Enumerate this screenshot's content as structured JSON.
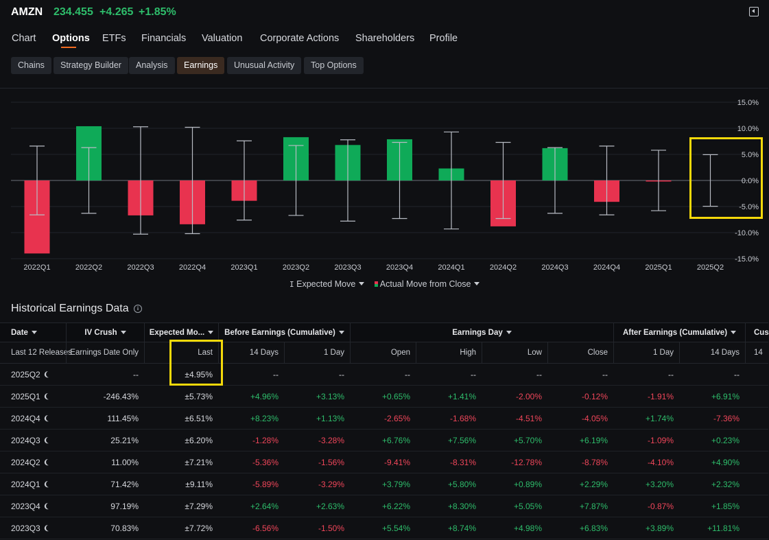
{
  "header": {
    "ticker": "AMZN",
    "price": "234.455",
    "change": "+4.265",
    "change_pct": "+1.85%"
  },
  "main_tabs": [
    {
      "label": "Chart"
    },
    {
      "label": "Options",
      "active": true
    },
    {
      "label": "ETFs"
    },
    {
      "label": "Financials"
    },
    {
      "label": "Valuation"
    },
    {
      "label": "Corporate Actions"
    },
    {
      "label": "Shareholders"
    },
    {
      "label": "Profile"
    }
  ],
  "sub_tabs": [
    {
      "label": "Chains"
    },
    {
      "label": "Strategy Builder"
    },
    {
      "label": "Analysis"
    },
    {
      "label": "Earnings",
      "active": true
    },
    {
      "label": "Unusual Activity"
    },
    {
      "label": "Top Options"
    }
  ],
  "colors": {
    "positive": "#2ebd6b",
    "negative": "#f0465a",
    "bar_green": "#0faa58",
    "bar_red": "#e8334f",
    "accent": "#f26b21",
    "highlight": "#f5d90a"
  },
  "legend": {
    "expected_move": "Expected Move",
    "actual_move": "Actual Move from Close"
  },
  "chart_data": {
    "type": "bar",
    "categories": [
      "2022Q1",
      "2022Q2",
      "2022Q3",
      "2022Q4",
      "2023Q1",
      "2023Q2",
      "2023Q3",
      "2023Q4",
      "2024Q1",
      "2024Q2",
      "2024Q3",
      "2024Q4",
      "2025Q1",
      "2025Q2"
    ],
    "series": [
      {
        "name": "Actual Move from Close",
        "values": [
          -14.0,
          10.4,
          -6.7,
          -8.4,
          -3.9,
          8.3,
          6.8,
          7.9,
          2.3,
          -8.8,
          6.2,
          -4.1,
          -0.12,
          null
        ]
      },
      {
        "name": "Expected Move",
        "values": [
          6.6,
          6.3,
          10.3,
          10.2,
          7.6,
          6.7,
          7.8,
          7.3,
          9.3,
          7.3,
          6.3,
          6.6,
          5.8,
          4.95
        ]
      }
    ],
    "y_ticks": [
      "15.0%",
      "10.0%",
      "5.0%",
      "0.0%",
      "-5.0%",
      "-10.0%",
      "-15.0%"
    ],
    "ylim": [
      -15,
      15
    ],
    "grid": true
  },
  "table": {
    "title": "Historical Earnings Data",
    "group_headers": {
      "date": "Date",
      "iv_crush": "IV Crush",
      "expected_move": "Expected Mo...",
      "before": "Before Earnings (Cumulative)",
      "day": "Earnings Day",
      "after": "After Earnings (Cumulative)",
      "more": "Cus"
    },
    "sub_headers": {
      "date": "Last 12 Releases",
      "iv_crush": "Earnings Date Only",
      "expected_move": "Last",
      "before_14": "14 Days",
      "before_1": "1 Day",
      "open": "Open",
      "high": "High",
      "low": "Low",
      "close": "Close",
      "after_1": "1 Day",
      "after_14": "14 Days",
      "more": "14"
    },
    "rows": [
      {
        "date": "2025Q2",
        "iv": "--",
        "em": "±4.95%",
        "b14": "--",
        "b1": "--",
        "open": "--",
        "high": "--",
        "low": "--",
        "close": "--",
        "a1": "--",
        "a14": "--"
      },
      {
        "date": "2025Q1",
        "iv": "-246.43%",
        "em": "±5.73%",
        "b14": "+4.96%",
        "b1": "+3.13%",
        "open": "+0.65%",
        "high": "+1.41%",
        "low": "-2.00%",
        "close": "-0.12%",
        "a1": "-1.91%",
        "a14": "+6.91%"
      },
      {
        "date": "2024Q4",
        "iv": "111.45%",
        "em": "±6.51%",
        "b14": "+8.23%",
        "b1": "+1.13%",
        "open": "-2.65%",
        "high": "-1.68%",
        "low": "-4.51%",
        "close": "-4.05%",
        "a1": "+1.74%",
        "a14": "-7.36%"
      },
      {
        "date": "2024Q3",
        "iv": "25.21%",
        "em": "±6.20%",
        "b14": "-1.28%",
        "b1": "-3.28%",
        "open": "+6.76%",
        "high": "+7.56%",
        "low": "+5.70%",
        "close": "+6.19%",
        "a1": "-1.09%",
        "a14": "+0.23%"
      },
      {
        "date": "2024Q2",
        "iv": "11.00%",
        "em": "±7.21%",
        "b14": "-5.36%",
        "b1": "-1.56%",
        "open": "-9.41%",
        "high": "-8.31%",
        "low": "-12.78%",
        "close": "-8.78%",
        "a1": "-4.10%",
        "a14": "+4.90%"
      },
      {
        "date": "2024Q1",
        "iv": "71.42%",
        "em": "±9.11%",
        "b14": "-5.89%",
        "b1": "-3.29%",
        "open": "+3.79%",
        "high": "+5.80%",
        "low": "+0.89%",
        "close": "+2.29%",
        "a1": "+3.20%",
        "a14": "+2.32%"
      },
      {
        "date": "2023Q4",
        "iv": "97.19%",
        "em": "±7.29%",
        "b14": "+2.64%",
        "b1": "+2.63%",
        "open": "+6.22%",
        "high": "+8.30%",
        "low": "+5.05%",
        "close": "+7.87%",
        "a1": "-0.87%",
        "a14": "+1.85%"
      },
      {
        "date": "2023Q3",
        "iv": "70.83%",
        "em": "±7.72%",
        "b14": "-6.56%",
        "b1": "-1.50%",
        "open": "+5.54%",
        "high": "+8.74%",
        "low": "+4.98%",
        "close": "+6.83%",
        "a1": "+3.89%",
        "a14": "+11.81%"
      }
    ]
  }
}
